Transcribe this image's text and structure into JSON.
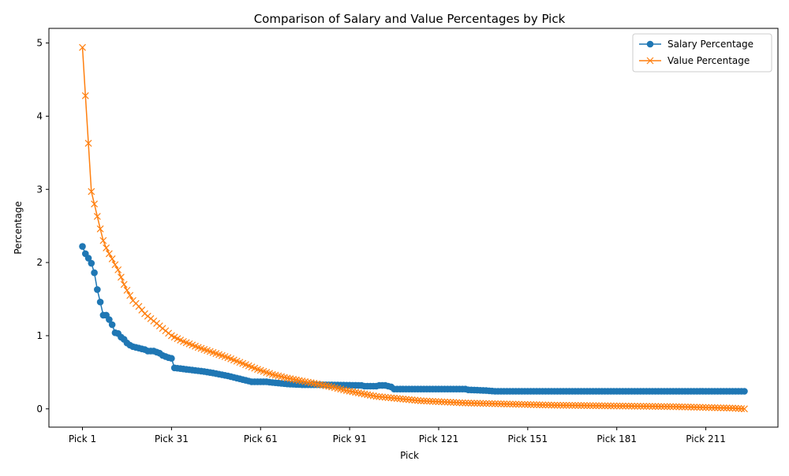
{
  "chart_data": {
    "type": "line",
    "title": "Comparison of Salary and Value Percentages by Pick",
    "xlabel": "Pick",
    "ylabel": "Percentage",
    "xlim": [
      -10.3,
      235.3
    ],
    "ylim": [
      -0.25,
      5.2
    ],
    "x_ticks": [
      {
        "pick": 1,
        "label": "Pick 1"
      },
      {
        "pick": 31,
        "label": "Pick 31"
      },
      {
        "pick": 61,
        "label": "Pick 61"
      },
      {
        "pick": 91,
        "label": "Pick 91"
      },
      {
        "pick": 121,
        "label": "Pick 121"
      },
      {
        "pick": 151,
        "label": "Pick 151"
      },
      {
        "pick": 181,
        "label": "Pick 181"
      },
      {
        "pick": 211,
        "label": "Pick 211"
      }
    ],
    "y_ticks": [
      0,
      1,
      2,
      3,
      4,
      5
    ],
    "grid": false,
    "legend_position": "top-right",
    "pick_count": 224,
    "series": [
      {
        "name": "Salary Percentage",
        "color": "#1f77b4",
        "marker": "circle",
        "key_points": [
          [
            1,
            2.22
          ],
          [
            2,
            2.12
          ],
          [
            3,
            2.06
          ],
          [
            4,
            1.99
          ],
          [
            5,
            1.86
          ],
          [
            6,
            1.63
          ],
          [
            7,
            1.46
          ],
          [
            8,
            1.28
          ],
          [
            9,
            1.28
          ],
          [
            10,
            1.22
          ],
          [
            11,
            1.15
          ],
          [
            12,
            1.04
          ],
          [
            13,
            1.03
          ],
          [
            14,
            0.98
          ],
          [
            15,
            0.95
          ],
          [
            16,
            0.9
          ],
          [
            17,
            0.87
          ],
          [
            18,
            0.85
          ],
          [
            20,
            0.83
          ],
          [
            22,
            0.81
          ],
          [
            23,
            0.79
          ],
          [
            25,
            0.79
          ],
          [
            27,
            0.76
          ],
          [
            28,
            0.73
          ],
          [
            30,
            0.7
          ],
          [
            31,
            0.69
          ],
          [
            32,
            0.56
          ],
          [
            34,
            0.55
          ],
          [
            38,
            0.53
          ],
          [
            42,
            0.51
          ],
          [
            45,
            0.49
          ],
          [
            50,
            0.45
          ],
          [
            55,
            0.4
          ],
          [
            58,
            0.37
          ],
          [
            63,
            0.37
          ],
          [
            65,
            0.36
          ],
          [
            70,
            0.34
          ],
          [
            75,
            0.33
          ],
          [
            80,
            0.33
          ],
          [
            95,
            0.32
          ],
          [
            96,
            0.31
          ],
          [
            100,
            0.31
          ],
          [
            101,
            0.32
          ],
          [
            103,
            0.32
          ],
          [
            105,
            0.3
          ],
          [
            106,
            0.27
          ],
          [
            130,
            0.27
          ],
          [
            131,
            0.26
          ],
          [
            137,
            0.25
          ],
          [
            140,
            0.24
          ],
          [
            224,
            0.24
          ]
        ]
      },
      {
        "name": "Value Percentage",
        "color": "#ff7f0e",
        "marker": "x",
        "key_points": [
          [
            1,
            4.94
          ],
          [
            2,
            4.28
          ],
          [
            3,
            3.63
          ],
          [
            4,
            2.97
          ],
          [
            5,
            2.8
          ],
          [
            6,
            2.63
          ],
          [
            7,
            2.46
          ],
          [
            8,
            2.3
          ],
          [
            9,
            2.2
          ],
          [
            10,
            2.12
          ],
          [
            11,
            2.05
          ],
          [
            12,
            1.97
          ],
          [
            13,
            1.9
          ],
          [
            14,
            1.8
          ],
          [
            15,
            1.7
          ],
          [
            16,
            1.62
          ],
          [
            17,
            1.55
          ],
          [
            18,
            1.48
          ],
          [
            20,
            1.4
          ],
          [
            22,
            1.3
          ],
          [
            25,
            1.2
          ],
          [
            28,
            1.1
          ],
          [
            31,
            1.0
          ],
          [
            35,
            0.92
          ],
          [
            40,
            0.84
          ],
          [
            45,
            0.77
          ],
          [
            50,
            0.7
          ],
          [
            55,
            0.62
          ],
          [
            60,
            0.54
          ],
          [
            65,
            0.47
          ],
          [
            70,
            0.42
          ],
          [
            75,
            0.38
          ],
          [
            80,
            0.34
          ],
          [
            85,
            0.3
          ],
          [
            90,
            0.25
          ],
          [
            95,
            0.21
          ],
          [
            100,
            0.17
          ],
          [
            105,
            0.15
          ],
          [
            110,
            0.13
          ],
          [
            115,
            0.11
          ],
          [
            120,
            0.1
          ],
          [
            125,
            0.09
          ],
          [
            130,
            0.08
          ],
          [
            140,
            0.07
          ],
          [
            150,
            0.06
          ],
          [
            160,
            0.05
          ],
          [
            170,
            0.045
          ],
          [
            180,
            0.04
          ],
          [
            190,
            0.035
          ],
          [
            200,
            0.03
          ],
          [
            210,
            0.02
          ],
          [
            220,
            0.01
          ],
          [
            224,
            0.0
          ]
        ]
      }
    ]
  }
}
